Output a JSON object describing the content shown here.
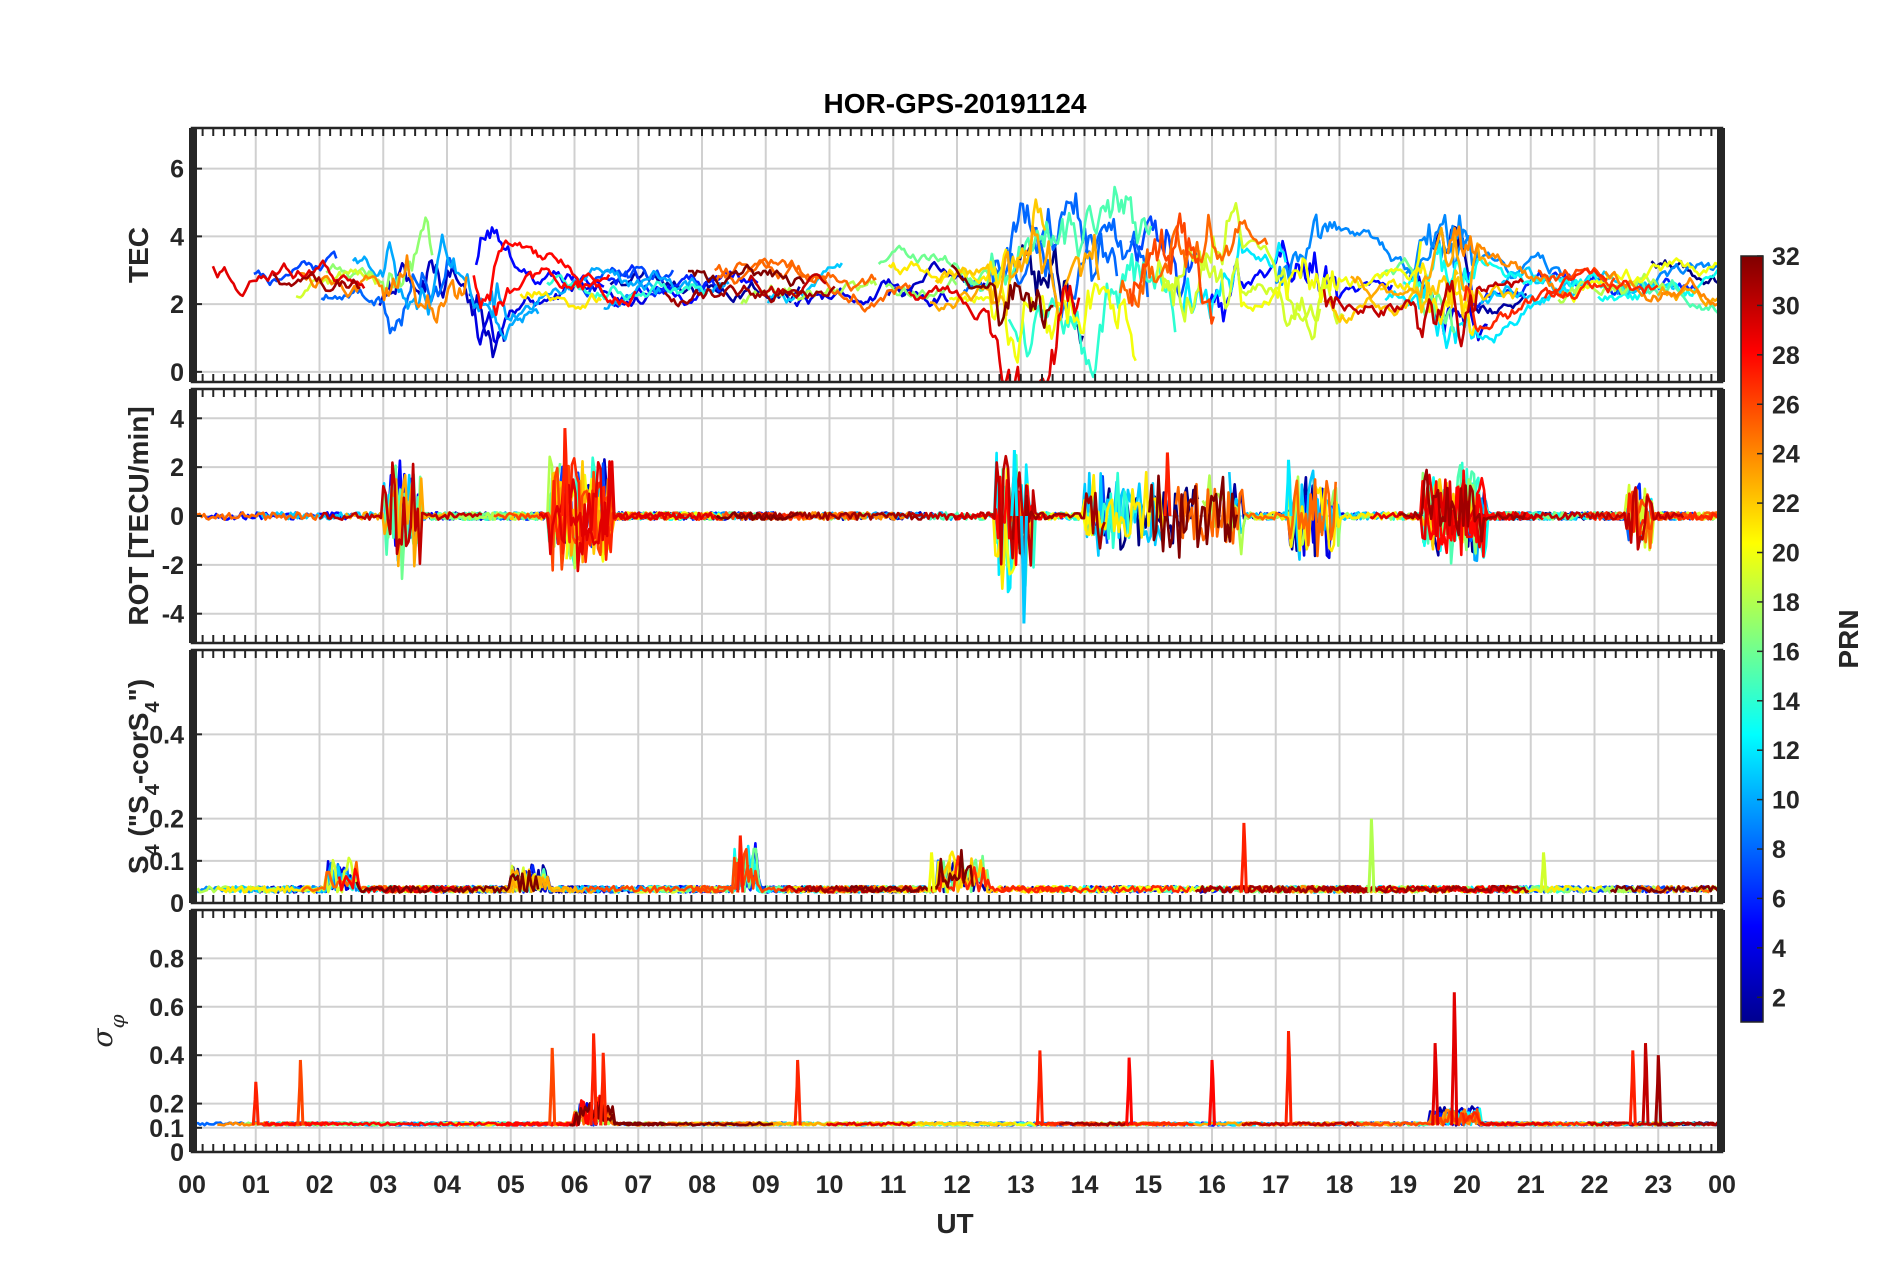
{
  "chart_data": {
    "type": "line",
    "title": "HOR-GPS-20191124",
    "xlabel": "UT",
    "x_tick_labels": [
      "00",
      "01",
      "02",
      "03",
      "04",
      "05",
      "06",
      "07",
      "08",
      "09",
      "10",
      "11",
      "12",
      "13",
      "14",
      "15",
      "16",
      "17",
      "18",
      "19",
      "20",
      "21",
      "22",
      "23",
      "00"
    ],
    "xlim": [
      0,
      24
    ],
    "grid": true,
    "panels": [
      {
        "id": "tec",
        "ylabel": "TEC",
        "ylim": [
          -0.3,
          7.2
        ],
        "ticks": [
          0,
          2,
          4,
          6
        ],
        "tick_labels": [
          "0",
          "2",
          "4",
          "6"
        ],
        "baseline": 2.5,
        "noise": 0.7,
        "noise_decay": 0.08,
        "segment_hours": [
          1.0,
          3.2
        ],
        "bursts": [
          [
            3.0,
            5.0,
            1.5
          ],
          [
            12.5,
            16.5,
            2.2
          ],
          [
            17.0,
            18.0,
            1.6
          ],
          [
            19.2,
            20.2,
            1.8
          ]
        ]
      },
      {
        "id": "rot",
        "ylabel": "ROT [TECU/min]",
        "ylim": [
          -5.2,
          5.2
        ],
        "ticks": [
          -4,
          -2,
          0,
          2,
          4
        ],
        "tick_labels": [
          "-4",
          "-2",
          "0",
          "2",
          "4"
        ],
        "baseline": 0,
        "noise": 0.15,
        "noise_decay": 0.0,
        "segment_hours": [
          1.0,
          3.0
        ],
        "bursts": [
          [
            3.0,
            3.6,
            1.8
          ],
          [
            5.6,
            6.6,
            1.7
          ],
          [
            12.6,
            13.2,
            2.3
          ],
          [
            14.0,
            16.5,
            1.2
          ],
          [
            17.2,
            18.0,
            1.5
          ],
          [
            19.3,
            20.3,
            1.4
          ],
          [
            22.5,
            22.9,
            1.0
          ]
        ],
        "spikes": [
          [
            5.85,
            3.6
          ],
          [
            13.05,
            -4.4
          ],
          [
            12.9,
            2.7
          ],
          [
            15.3,
            2.6
          ],
          [
            17.2,
            2.3
          ]
        ]
      },
      {
        "id": "s4",
        "ylabel": "S4 (\"S4-corS4\")",
        "ylabel_parts": {
          "s": "S",
          "sub": "4",
          "open": " (\"S",
          "mid": "-corS",
          "close": "\")"
        },
        "ylim": [
          0,
          0.6
        ],
        "ticks": [
          0,
          0.1,
          0.2,
          0.4
        ],
        "tick_labels": [
          "0",
          "0.1",
          "0.2",
          "0.4"
        ],
        "baseline": 0.025,
        "noise": 0.015,
        "noise_decay": 0.0,
        "segment_hours": [
          1.0,
          3.0
        ],
        "bursts": [
          [
            2.1,
            2.6,
            0.05
          ],
          [
            5.0,
            5.6,
            0.04
          ],
          [
            8.5,
            8.9,
            0.09
          ],
          [
            11.7,
            12.5,
            0.06
          ]
        ],
        "spikes": [
          [
            16.5,
            0.19
          ],
          [
            18.5,
            0.2
          ],
          [
            21.2,
            0.12
          ],
          [
            8.6,
            0.16
          ],
          [
            11.6,
            0.12
          ]
        ]
      },
      {
        "id": "sigma",
        "ylabel": "σφ",
        "ylabel_parts": {
          "sigma": "σ",
          "sub": "φ"
        },
        "ylim": [
          0,
          1.0
        ],
        "ticks": [
          0,
          0.1,
          0.2,
          0.4,
          0.6,
          0.8
        ],
        "tick_labels": [
          "0",
          "0.1",
          "0.2",
          "0.4",
          "0.6",
          "0.8"
        ],
        "baseline": 0.11,
        "noise": 0.012,
        "noise_decay": 0.0,
        "segment_hours": [
          1.0,
          3.0
        ],
        "bursts": [
          [
            6.0,
            6.6,
            0.08
          ],
          [
            19.4,
            20.2,
            0.05
          ]
        ],
        "spikes": [
          [
            1.0,
            0.29
          ],
          [
            1.7,
            0.38
          ],
          [
            5.65,
            0.43
          ],
          [
            6.3,
            0.49
          ],
          [
            6.45,
            0.41
          ],
          [
            9.5,
            0.38
          ],
          [
            13.3,
            0.42
          ],
          [
            14.7,
            0.39
          ],
          [
            16.0,
            0.38
          ],
          [
            17.2,
            0.5
          ],
          [
            19.5,
            0.45
          ],
          [
            19.8,
            0.66
          ],
          [
            22.6,
            0.42
          ],
          [
            22.8,
            0.45
          ],
          [
            23.0,
            0.4
          ]
        ]
      }
    ],
    "colorbar": {
      "label": "PRN",
      "range": [
        1,
        32
      ],
      "ticks": [
        2,
        4,
        6,
        8,
        10,
        12,
        14,
        16,
        18,
        20,
        22,
        24,
        26,
        28,
        30,
        32
      ],
      "tick_labels": [
        "2",
        "4",
        "6",
        "8",
        "10",
        "12",
        "14",
        "16",
        "18",
        "20",
        "22",
        "24",
        "26",
        "28",
        "30",
        "32"
      ],
      "colormap": "jet",
      "colors": [
        "#00008f",
        "#0000ff",
        "#0080ff",
        "#00ffff",
        "#80ff80",
        "#ffff00",
        "#ff8000",
        "#ff0000",
        "#800000"
      ]
    },
    "series_count": 32,
    "samples_per_hour": 28
  }
}
